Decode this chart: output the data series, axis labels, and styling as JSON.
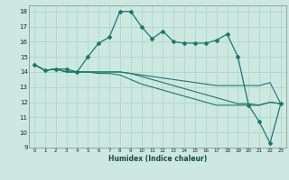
{
  "xlabel": "Humidex (Indice chaleur)",
  "background_color": "#cce8e0",
  "grid_color": "#b0d8cc",
  "line_color": "#1a7a6a",
  "xlim": [
    -0.5,
    23.5
  ],
  "ylim": [
    9,
    18.4
  ],
  "yticks": [
    9,
    10,
    11,
    12,
    13,
    14,
    15,
    16,
    17,
    18
  ],
  "xticks": [
    0,
    1,
    2,
    3,
    4,
    5,
    6,
    7,
    8,
    9,
    10,
    11,
    12,
    13,
    14,
    15,
    16,
    17,
    18,
    19,
    20,
    21,
    22,
    23
  ],
  "series": [
    [
      14.5,
      14.1,
      14.2,
      14.2,
      14.0,
      15.0,
      15.9,
      16.3,
      18.0,
      18.0,
      17.0,
      16.2,
      16.7,
      16.0,
      15.9,
      15.9,
      15.9,
      16.1,
      16.5,
      15.0,
      11.8,
      10.7,
      9.3,
      11.9
    ],
    [
      14.5,
      14.1,
      14.2,
      14.0,
      14.0,
      14.0,
      13.9,
      13.9,
      13.8,
      13.5,
      13.2,
      13.0,
      12.8,
      12.6,
      12.4,
      12.2,
      12.0,
      11.8,
      11.8,
      11.8,
      11.8,
      11.8,
      12.0,
      11.9
    ],
    [
      14.5,
      14.1,
      14.2,
      14.0,
      14.0,
      14.0,
      14.0,
      14.0,
      14.0,
      13.9,
      13.8,
      13.7,
      13.6,
      13.5,
      13.4,
      13.3,
      13.2,
      13.1,
      13.1,
      13.1,
      13.1,
      13.1,
      13.3,
      11.9
    ],
    [
      14.5,
      14.1,
      14.2,
      14.0,
      14.0,
      14.0,
      14.0,
      14.0,
      14.0,
      13.9,
      13.7,
      13.5,
      13.3,
      13.1,
      12.9,
      12.7,
      12.5,
      12.3,
      12.1,
      11.9,
      11.9,
      11.8,
      12.0,
      11.9
    ]
  ]
}
